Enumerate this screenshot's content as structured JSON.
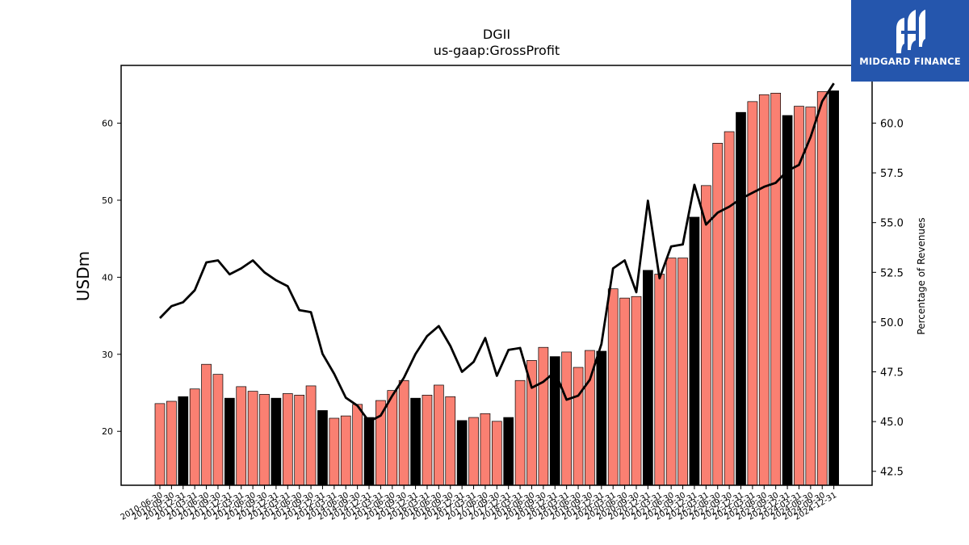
{
  "brand": {
    "name": "MIDGARD FINANCE",
    "background": "#2556ad"
  },
  "colors": {
    "bar": "#fa8072",
    "bar_highlight": "#000000",
    "line": "#000000"
  },
  "chart_data": {
    "type": "bar",
    "title": "DGII",
    "subtitle": "us-gaap:GrossProfit",
    "ylabel": "USDm",
    "y2label": "Percentage of Revenues",
    "ylim": [
      13,
      67.5
    ],
    "y2lim": [
      41.8,
      62.9
    ],
    "yticks": [
      20,
      30,
      40,
      50,
      60
    ],
    "y2ticks": [
      42.5,
      45.0,
      47.5,
      50.0,
      52.5,
      55.0,
      57.5,
      60.0
    ],
    "categories": [
      "2010-06-30",
      "2010-09-30",
      "2010-12-31",
      "2011-03-31",
      "2011-06-30",
      "2011-09-30",
      "2011-12-31",
      "2012-03-31",
      "2012-06-30",
      "2012-09-30",
      "2012-12-31",
      "2013-03-31",
      "2013-06-30",
      "2013-09-30",
      "2013-12-31",
      "2014-03-31",
      "2014-06-30",
      "2014-09-30",
      "2014-12-31",
      "2015-03-31",
      "2015-06-30",
      "2015-09-30",
      "2015-12-31",
      "2016-03-31",
      "2016-06-30",
      "2016-09-30",
      "2016-12-31",
      "2017-03-31",
      "2017-06-30",
      "2017-09-30",
      "2017-12-31",
      "2018-03-31",
      "2018-06-30",
      "2018-09-30",
      "2018-12-31",
      "2019-03-31",
      "2019-06-30",
      "2019-09-30",
      "2019-12-31",
      "2020-03-31",
      "2020-06-30",
      "2020-09-30",
      "2020-12-31",
      "2021-03-31",
      "2021-06-30",
      "2021-09-30",
      "2021-12-31",
      "2022-03-31",
      "2022-06-30",
      "2022-09-30",
      "2022-12-31",
      "2023-03-31",
      "2023-06-30",
      "2023-09-30",
      "2023-12-31",
      "2024-03-31",
      "2024-06-30",
      "2024-09-30",
      "2024-12-31"
    ],
    "shown_tick_labels": [
      "2010-06-30",
      "2010-09-30",
      "2010-12-31",
      "2011-03-31",
      "2011-06-30",
      "2011-09-30",
      "2011-12-31",
      "2012-03-31",
      "2012-06-30",
      "2012-09-30",
      "2012-12-31",
      "2013-03-31",
      "2013-06-30",
      "2013-09-30",
      "2013-12-31",
      "2014-03-31",
      "2014-06-30",
      "2014-09-30",
      "2014-12-31",
      "2015-03-31",
      "2015-06-30",
      "2015-09-30",
      "2015-12-31",
      "2016-03-31",
      "2016-06-30",
      "2016-09-30",
      "2016-12-31",
      "2017-03-31",
      "2017-06-30",
      "2017-09-30",
      "2017-12-31",
      "2018-03-31",
      "2018-06-30",
      "2018-09-30",
      "2018-12-31",
      "2019-03-31",
      "2019-06-30",
      "2019-09-30",
      "2019-12-31",
      "2020-03-31",
      "2020-06-30",
      "2020-09-30",
      "2020-12-31",
      "2021-03-31",
      "2021-06-30",
      "2021-09-30",
      "2021-12-31",
      "2022-03-31",
      "2022-06-30",
      "2022-09-30",
      "2022-12-31",
      "2023-03-31",
      "2023-06-30",
      "2023-09-30",
      "2023-12-31",
      "2024-03-31",
      "2024-06-30",
      "2024-09-30",
      "2024-12-31"
    ],
    "series": [
      {
        "kind": "bar",
        "axis": "left",
        "values": [
          23.6,
          23.9,
          24.5,
          25.5,
          28.7,
          27.4,
          24.3,
          25.8,
          25.2,
          24.8,
          24.3,
          24.9,
          24.7,
          25.9,
          22.7,
          21.7,
          22.0,
          23.5,
          21.8,
          24.0,
          25.3,
          26.6,
          24.3,
          24.7,
          26.0,
          24.5,
          21.4,
          21.8,
          22.3,
          21.3,
          21.8,
          26.6,
          29.2,
          30.9,
          29.7,
          30.3,
          28.3,
          30.5,
          30.4,
          38.5,
          37.3,
          37.5,
          40.9,
          40.4,
          42.5,
          42.5,
          47.8,
          51.9,
          57.4,
          58.9,
          61.4,
          62.8,
          63.7,
          63.9,
          61.0,
          62.2,
          62.1,
          64.1,
          64.2
        ],
        "highlight_indices": [
          2,
          6,
          10,
          14,
          18,
          22,
          26,
          30,
          34,
          38,
          42,
          46,
          50,
          54,
          58
        ]
      },
      {
        "kind": "line",
        "axis": "right",
        "values": [
          50.2,
          50.8,
          51.0,
          51.6,
          53.0,
          53.1,
          52.4,
          52.7,
          53.1,
          52.5,
          52.1,
          51.8,
          50.6,
          50.5,
          48.4,
          47.4,
          46.2,
          45.8,
          45.0,
          45.3,
          46.3,
          47.2,
          48.4,
          49.3,
          49.8,
          48.8,
          47.5,
          48.0,
          49.2,
          47.3,
          48.6,
          48.7,
          46.7,
          47.0,
          47.5,
          46.1,
          46.3,
          47.1,
          48.9,
          52.7,
          53.1,
          51.5,
          56.1,
          52.2,
          53.8,
          53.9,
          56.9,
          54.9,
          55.5,
          55.8,
          56.2,
          56.5,
          56.8,
          57.0,
          57.6,
          57.9,
          59.3,
          61.1,
          62.0
        ]
      }
    ],
    "grid": false,
    "legend": "none"
  }
}
